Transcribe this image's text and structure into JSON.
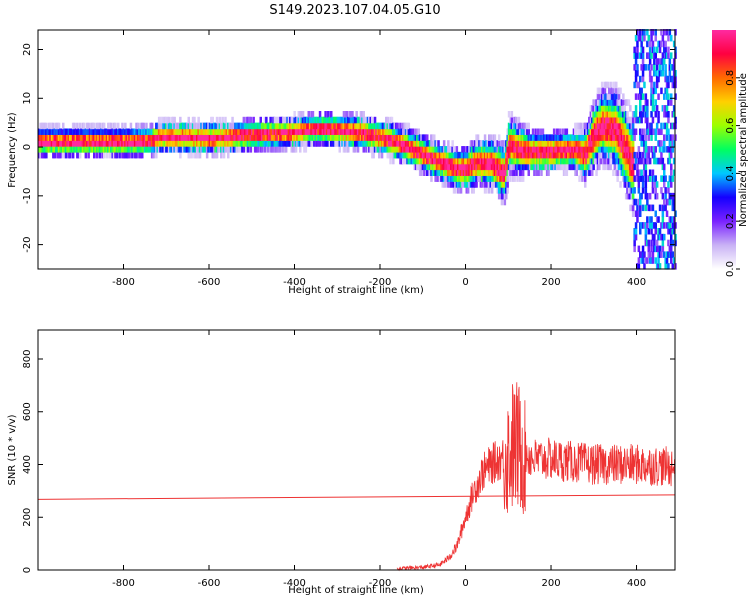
{
  "title": "S149.2023.107.04.05.G10",
  "chart_data": [
    {
      "type": "heatmap",
      "xlabel": "Height of straight line (km)",
      "ylabel": "Frequency (Hz)",
      "xlim": [
        -1000,
        490
      ],
      "ylim": [
        -25,
        24
      ],
      "xticks": [
        -800,
        -600,
        -400,
        -200,
        0,
        200,
        400
      ],
      "yticks": [
        -20,
        -10,
        0,
        10,
        20
      ],
      "colorbar": {
        "label": "Normalized spectral amplitude",
        "range": [
          0,
          1
        ],
        "ticks": [
          0.0,
          0.2,
          0.4,
          0.6,
          0.8
        ],
        "tick_labels": [
          "0.0",
          "0.2",
          "0.4",
          "0.6",
          "0.8"
        ],
        "colormap": [
          "#ffffff",
          "#c9b2f5",
          "#7a22ff",
          "#1400ff",
          "#00c8ff",
          "#00ff60",
          "#9cff00",
          "#ffd000",
          "#ff6a00",
          "#ff0040",
          "#ff2aa0"
        ]
      },
      "ridge": {
        "x": [
          -1000,
          -900,
          -800,
          -740,
          -720,
          -700,
          -650,
          -600,
          -550,
          -500,
          -450,
          -400,
          -350,
          -300,
          -250,
          -200,
          -150,
          -100,
          -50,
          -20,
          0,
          30,
          60,
          90,
          100,
          120,
          150,
          200,
          250,
          280,
          300,
          320,
          350,
          380,
          400
        ],
        "y": [
          0.5,
          0.5,
          0.5,
          0.7,
          1.5,
          1.5,
          1.5,
          1.2,
          1.5,
          2.0,
          2.2,
          2.5,
          3.2,
          3.0,
          2.5,
          1.5,
          0,
          -2,
          -4,
          -5,
          -5,
          -3.5,
          -4,
          -6,
          0,
          -1,
          -1.5,
          -1.5,
          -1,
          -2,
          2,
          4,
          3,
          -2,
          -6
        ]
      },
      "spread": {
        "x": [
          -1000,
          -800,
          -600,
          -400,
          -200,
          -50,
          0,
          50,
          100,
          150,
          250,
          300,
          350,
          400
        ],
        "y": [
          1.5,
          1.5,
          1.6,
          1.6,
          1.8,
          2,
          2.2,
          2.5,
          3,
          2.2,
          2,
          3.5,
          4,
          5
        ]
      },
      "noise_region_x": [
        390,
        490
      ]
    },
    {
      "type": "line",
      "xlabel": "Height of straight line (km)",
      "ylabel": "SNR (10 * v/v)",
      "xlim": [
        -1000,
        490
      ],
      "ylim": [
        0,
        910
      ],
      "xticks": [
        -800,
        -600,
        -400,
        -200,
        0,
        200,
        400
      ],
      "yticks": [
        0,
        200,
        400,
        600,
        800
      ],
      "series": [
        {
          "color": "#ee3333",
          "trend": {
            "x": [
              -1000,
              490
            ],
            "y": [
              268,
              285
            ]
          },
          "envelope": {
            "x": [
              -160,
              -100,
              -60,
              -40,
              -20,
              0,
              20,
              40,
              60,
              80,
              100,
              110,
              120,
              140,
              160,
              200,
              250,
              300,
              350,
              400,
              450,
              490
            ],
            "y": [
              5,
              10,
              20,
              45,
              90,
              200,
              300,
              370,
              400,
              420,
              440,
              470,
              470,
              440,
              420,
              420,
              410,
              400,
              400,
              400,
              395,
              390
            ]
          }
        }
      ]
    }
  ]
}
